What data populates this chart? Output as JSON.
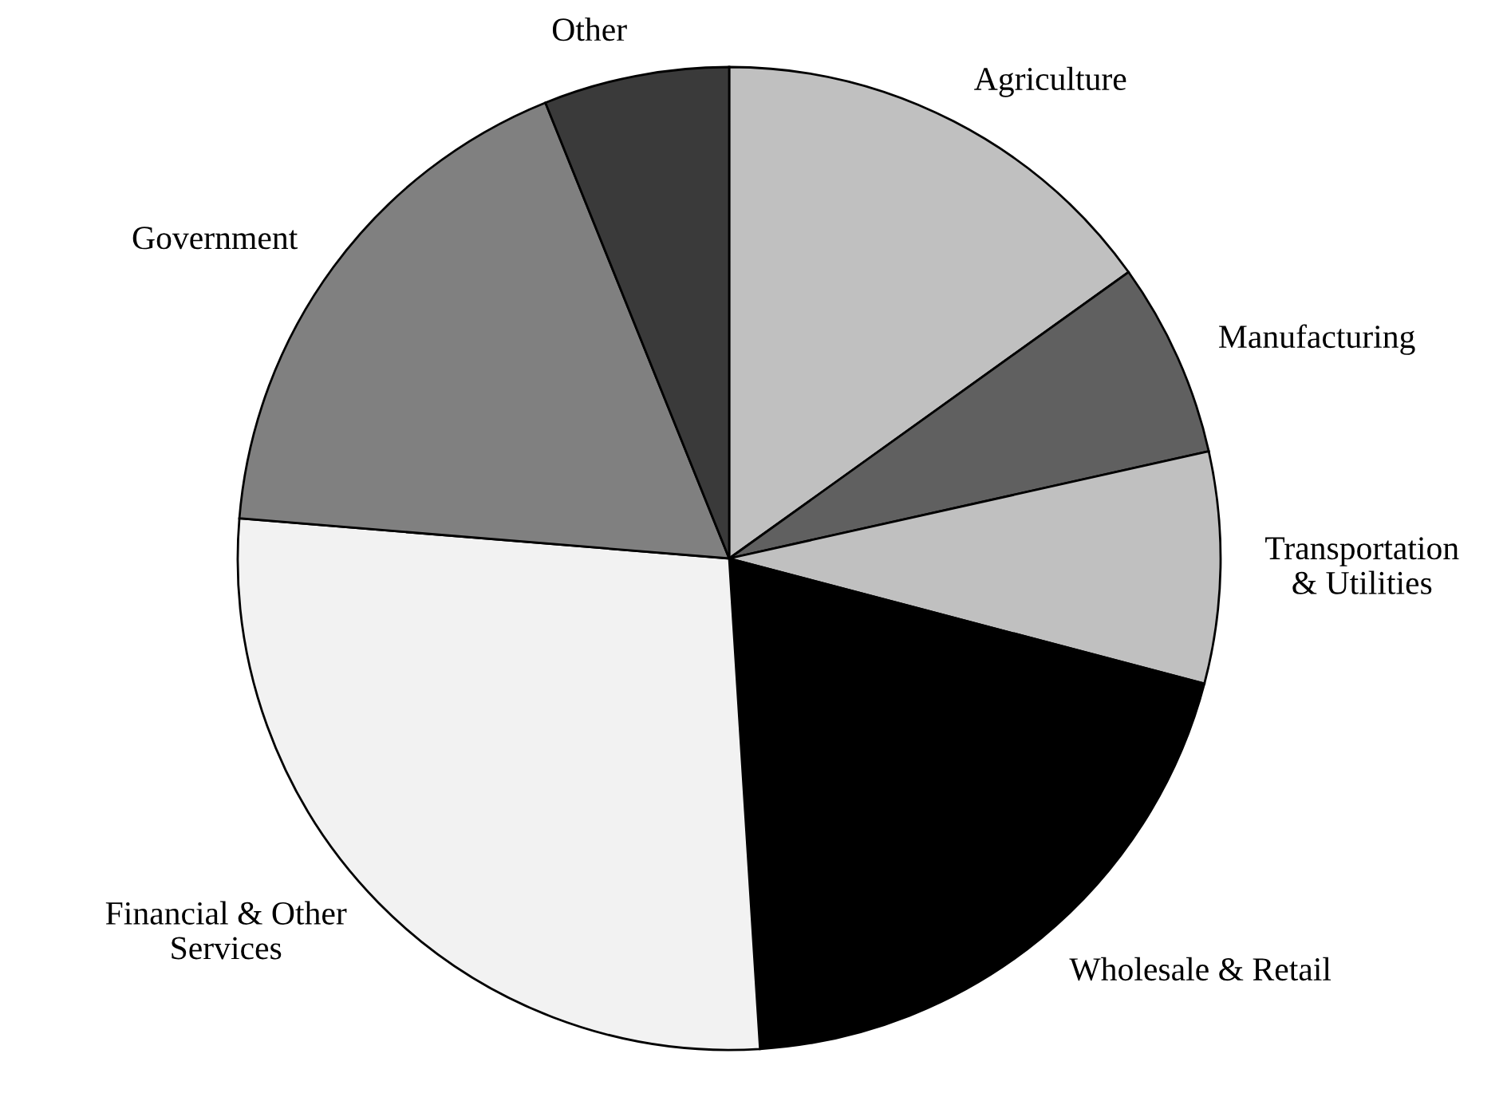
{
  "chart_data": {
    "type": "pie",
    "categories": [
      "Agriculture",
      "Manufacturing",
      "Transportation\n& Utilities",
      "Wholesale & Retail",
      "Financial & Other\nServices",
      "Government",
      "Other"
    ],
    "values": [
      15.1,
      6.4,
      7.6,
      19.9,
      27.3,
      17.6,
      6.1
    ],
    "colors": [
      "#c0c0c0",
      "#606060",
      "#c0c0c0",
      "#000000",
      "#f2f2f2",
      "#808080",
      "#3a3a3a"
    ],
    "legend": false
  }
}
